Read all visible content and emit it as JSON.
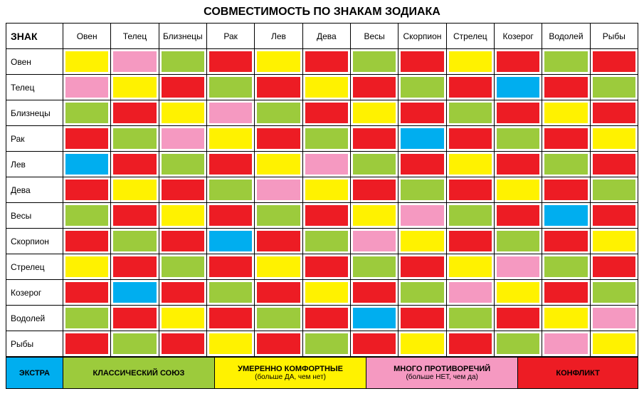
{
  "title": "СОВМЕСТИМОСТЬ ПО ЗНАКАМ ЗОДИАКА",
  "corner_label": "ЗНАК",
  "signs": [
    "Овен",
    "Телец",
    "Близнецы",
    "Рак",
    "Лев",
    "Дева",
    "Весы",
    "Скорпион",
    "Стрелец",
    "Козерог",
    "Водолей",
    "Рыбы"
  ],
  "colors": {
    "E": "#00aeef",
    "C": "#9ccb3c",
    "M": "#fff200",
    "P": "#f599c1",
    "K": "#ed1c24"
  },
  "matrix": [
    [
      "M",
      "P",
      "C",
      "K",
      "M",
      "K",
      "C",
      "K",
      "M",
      "K",
      "C",
      "K"
    ],
    [
      "P",
      "M",
      "K",
      "C",
      "K",
      "M",
      "K",
      "C",
      "K",
      "E",
      "K",
      "C"
    ],
    [
      "C",
      "K",
      "M",
      "P",
      "C",
      "K",
      "M",
      "K",
      "C",
      "K",
      "M",
      "K"
    ],
    [
      "K",
      "C",
      "P",
      "M",
      "K",
      "C",
      "K",
      "E",
      "K",
      "C",
      "K",
      "M"
    ],
    [
      "E",
      "K",
      "C",
      "K",
      "M",
      "P",
      "C",
      "K",
      "M",
      "K",
      "C",
      "K"
    ],
    [
      "K",
      "M",
      "K",
      "C",
      "P",
      "M",
      "K",
      "C",
      "K",
      "M",
      "K",
      "C"
    ],
    [
      "C",
      "K",
      "M",
      "K",
      "C",
      "K",
      "M",
      "P",
      "C",
      "K",
      "E",
      "K"
    ],
    [
      "K",
      "C",
      "K",
      "E",
      "K",
      "C",
      "P",
      "M",
      "K",
      "C",
      "K",
      "M"
    ],
    [
      "M",
      "K",
      "C",
      "K",
      "M",
      "K",
      "C",
      "K",
      "M",
      "P",
      "C",
      "K"
    ],
    [
      "K",
      "E",
      "K",
      "C",
      "K",
      "M",
      "K",
      "C",
      "P",
      "M",
      "K",
      "C"
    ],
    [
      "C",
      "K",
      "M",
      "K",
      "C",
      "K",
      "E",
      "K",
      "C",
      "K",
      "M",
      "P"
    ],
    [
      "K",
      "C",
      "K",
      "M",
      "K",
      "C",
      "K",
      "M",
      "K",
      "C",
      "P",
      "M"
    ]
  ],
  "legend": [
    {
      "key": "E",
      "label": "ЭКСТРА",
      "sub": "",
      "width": "9%"
    },
    {
      "key": "C",
      "label": "КЛАССИЧЕСКИЙ СОЮЗ",
      "sub": "",
      "width": "24%"
    },
    {
      "key": "M",
      "label": "УМЕРЕННО КОМФОРТНЫЕ",
      "sub": "(больше ДА, чем нет)",
      "width": "24%"
    },
    {
      "key": "P",
      "label": "МНОГО ПРОТИВОРЕЧИЙ",
      "sub": "(больше НЕТ, чем да)",
      "width": "24%"
    },
    {
      "key": "K",
      "label": "КОНФЛИКТ",
      "sub": "",
      "width": "19%"
    }
  ]
}
